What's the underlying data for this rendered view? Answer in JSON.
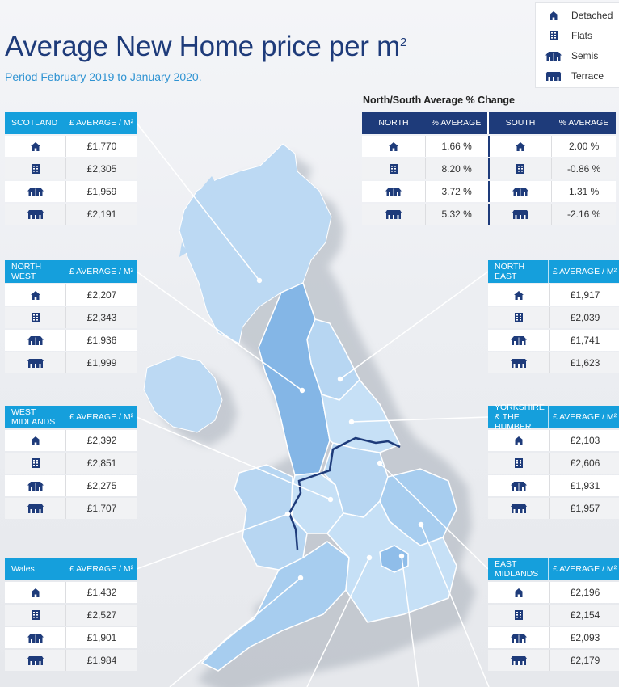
{
  "title": {
    "main": "Average New Home price per m",
    "sup": "2"
  },
  "subtitle": "Period February 2019 to January 2020.",
  "legend": [
    {
      "label": "Detached",
      "icon": "detached-icon"
    },
    {
      "label": "Flats",
      "icon": "flats-icon"
    },
    {
      "label": "Semis",
      "icon": "semis-icon"
    },
    {
      "label": "Terrace",
      "icon": "terrace-icon"
    }
  ],
  "value_header": "£ AVERAGE / M²",
  "colors": {
    "accent": "#159fdc",
    "navy": "#1e3b7a",
    "map_fill": "#b9d8f3",
    "map_dark": "#84b6e6"
  },
  "north_south": {
    "title": "North/South Average % Change",
    "headers": [
      "NORTH",
      "% AVERAGE",
      "SOUTH",
      "% AVERAGE"
    ],
    "rows": [
      {
        "north": "1.66 %",
        "south": "2.00 %"
      },
      {
        "north": "8.20 %",
        "south": "-0.86 %"
      },
      {
        "north": "3.72 %",
        "south": "1.31 %"
      },
      {
        "north": "5.32 %",
        "south": "-2.16 %"
      }
    ]
  },
  "regions": {
    "scotland": {
      "name": "SCOTLAND",
      "values": [
        "£1,770",
        "£2,305",
        "£1,959",
        "£2,191"
      ]
    },
    "north_west": {
      "name": "NORTH WEST",
      "values": [
        "£2,207",
        "£2,343",
        "£1,936",
        "£1,999"
      ]
    },
    "west_midlands": {
      "name": "WEST MIDLANDS",
      "values": [
        "£2,392",
        "£2,851",
        "£2,275",
        "£1,707"
      ]
    },
    "wales": {
      "name": "Wales",
      "values": [
        "£1,432",
        "£2,527",
        "£1,901",
        "£1,984"
      ]
    },
    "north_east": {
      "name": "NORTH EAST",
      "values": [
        "£1,917",
        "£2,039",
        "£1,741",
        "£1,623"
      ]
    },
    "yorkshire": {
      "name": "YORKSHIRE & THE HUMBER",
      "values": [
        "£2,103",
        "£2,606",
        "£1,931",
        "£1,957"
      ]
    },
    "east_midlands": {
      "name": "EAST MIDLANDS",
      "values": [
        "£2,196",
        "£2,154",
        "£2,093",
        "£2,179"
      ]
    }
  }
}
